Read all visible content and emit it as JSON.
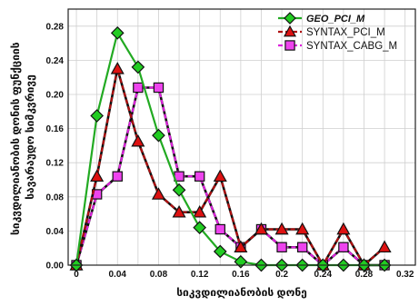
{
  "chart_data": {
    "type": "line",
    "xlabel": "სიკვდილიანობის დონე",
    "ylabel_lines": [
      "სიკვდილიანობის დონის ფუნქციის",
      "სავარაუდო სიმკვრივე"
    ],
    "x": [
      0,
      0.02,
      0.04,
      0.06,
      0.08,
      0.1,
      0.12,
      0.14,
      0.16,
      0.18,
      0.2,
      0.22,
      0.24,
      0.26,
      0.28,
      0.3
    ],
    "xticks": [
      "0",
      "0.04",
      "0.08",
      "0.12",
      "0.16",
      "0.2",
      "0.24",
      "0.28",
      "0.32"
    ],
    "yticks": [
      "0.00",
      "0.04",
      "0.08",
      "0.12",
      "0.16",
      "0.20",
      "0.24",
      "0.28"
    ],
    "xlim": [
      -0.008,
      0.33
    ],
    "ylim": [
      0,
      0.3
    ],
    "grid": true,
    "legend_position": "top-right",
    "series": [
      {
        "name": "GEO_PCI_M",
        "color": "#22aa22",
        "dash": "solid",
        "marker": "diamond",
        "marker_fill": "#22cc22",
        "legend_style": "bold-italic",
        "values": [
          0,
          0.175,
          0.272,
          0.232,
          0.152,
          0.088,
          0.044,
          0.016,
          0.004,
          0,
          0,
          0,
          0,
          0,
          0,
          0
        ]
      },
      {
        "name": "SYNTAX_PCI_M",
        "color": "#b01010",
        "dash": "dashed",
        "marker": "triangle",
        "marker_fill": "#dd1111",
        "legend_style": "normal",
        "values": [
          0,
          0.104,
          0.23,
          0.145,
          0.083,
          0.062,
          0.062,
          0.104,
          0.021,
          0.042,
          0.042,
          0.042,
          0,
          0.042,
          0,
          0.021
        ]
      },
      {
        "name": "SYNTAX_CABG_M",
        "color": "#dd22dd",
        "dash": "dashed",
        "marker": "square",
        "marker_fill": "#ee44ee",
        "legend_style": "normal",
        "values": [
          0,
          0.083,
          0.104,
          0.208,
          0.208,
          0.104,
          0.104,
          0.042,
          0.021,
          0.042,
          0.021,
          0.021,
          0,
          0.021,
          0,
          0
        ]
      }
    ]
  }
}
